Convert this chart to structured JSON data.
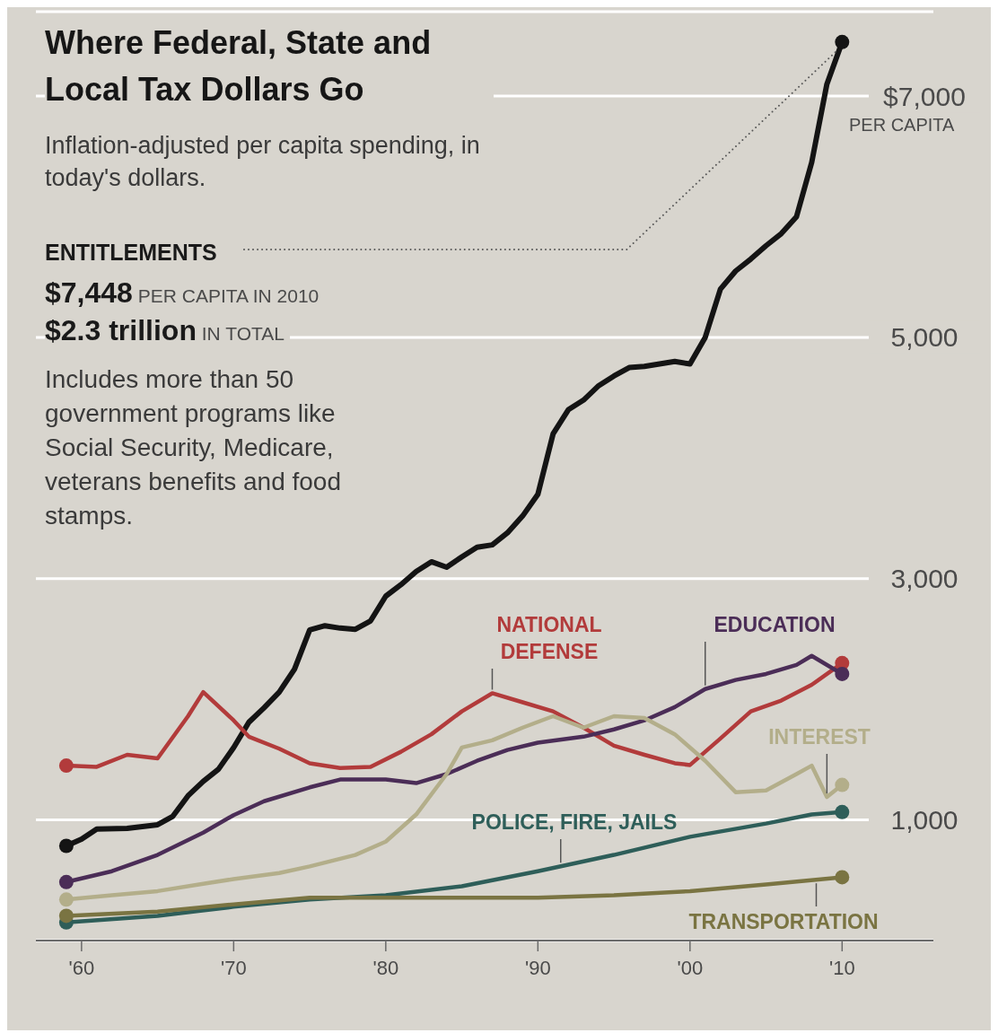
{
  "chart_data": {
    "type": "line",
    "title": "Where Federal, State and Local Tax Dollars Go",
    "subtitle": "Inflation-adjusted per capita spending, in today's dollars.",
    "annotations": [
      "$7,448 PER CAPITA IN 2010",
      "$2.3 trillion IN TOTAL",
      "Includes more than 50 government programs like Social Security, Medicare, veterans benefits and food stamps.",
      "PER CAPITA"
    ],
    "xlim": [
      1957,
      2016
    ],
    "xticks": [
      {
        "value": 1960,
        "label": "'60"
      },
      {
        "value": 1970,
        "label": "'70"
      },
      {
        "value": 1980,
        "label": "'80"
      },
      {
        "value": 1990,
        "label": "'90"
      },
      {
        "value": 2000,
        "label": "'00"
      },
      {
        "value": 2010,
        "label": "'10"
      }
    ],
    "ylim": [
      0,
      7700
    ],
    "yticks": [
      {
        "value": 1000,
        "label": "1,000"
      },
      {
        "value": 3000,
        "label": "3,000"
      },
      {
        "value": 5000,
        "label": "5,000"
      },
      {
        "value": 7000,
        "label": "$7,000"
      }
    ],
    "grid": "y",
    "series": [
      {
        "name": "ENTITLEMENTS",
        "color": "#141414",
        "x": [
          1959,
          1960,
          1961,
          1963,
          1965,
          1966,
          1967,
          1968,
          1969,
          1970,
          1971,
          1972,
          1973,
          1974,
          1975,
          1976,
          1977,
          1978,
          1979,
          1980,
          1981,
          1982,
          1983,
          1984,
          1985,
          1986,
          1987,
          1988,
          1989,
          1990,
          1991,
          1992,
          1993,
          1994,
          1995,
          1996,
          1997,
          1998,
          1999,
          2000,
          2001,
          2002,
          2003,
          2004,
          2005,
          2006,
          2007,
          2008,
          2009,
          2010
        ],
        "values": [
          785,
          840,
          925,
          930,
          960,
          1030,
          1200,
          1320,
          1420,
          1600,
          1810,
          1930,
          2060,
          2250,
          2575,
          2610,
          2590,
          2580,
          2650,
          2855,
          2950,
          3060,
          3140,
          3095,
          3180,
          3260,
          3280,
          3380,
          3520,
          3700,
          4200,
          4400,
          4480,
          4600,
          4680,
          4750,
          4760,
          4780,
          4800,
          4780,
          5000,
          5400,
          5550,
          5650,
          5760,
          5860,
          6000,
          6450,
          7100,
          7448
        ]
      },
      {
        "name": "NATIONAL DEFENSE",
        "color": "#b23b3b",
        "x": [
          1959,
          1961,
          1963,
          1965,
          1967,
          1968,
          1970,
          1971,
          1973,
          1975,
          1977,
          1979,
          1981,
          1983,
          1985,
          1987,
          1989,
          1991,
          1993,
          1995,
          1997,
          1999,
          2000,
          2002,
          2004,
          2006,
          2008,
          2010
        ],
        "values": [
          1450,
          1440,
          1540,
          1510,
          1860,
          2060,
          1825,
          1690,
          1590,
          1470,
          1430,
          1440,
          1565,
          1710,
          1900,
          2050,
          1975,
          1900,
          1765,
          1615,
          1540,
          1470,
          1455,
          1675,
          1900,
          1990,
          2120,
          2300
        ]
      },
      {
        "name": "EDUCATION",
        "color": "#4b2d57",
        "x": [
          1959,
          1962,
          1965,
          1968,
          1970,
          1972,
          1975,
          1977,
          1980,
          1982,
          1984,
          1986,
          1988,
          1990,
          1993,
          1995,
          1997,
          1999,
          2001,
          2003,
          2005,
          2007,
          2008,
          2010
        ],
        "values": [
          485,
          575,
          710,
          895,
          1040,
          1155,
          1270,
          1335,
          1335,
          1305,
          1380,
          1490,
          1580,
          1640,
          1690,
          1750,
          1825,
          1935,
          2085,
          2160,
          2210,
          2285,
          2360,
          2210
        ]
      },
      {
        "name": "INTEREST",
        "color": "#b3ae8a",
        "x": [
          1959,
          1962,
          1965,
          1968,
          1970,
          1973,
          1975,
          1978,
          1980,
          1982,
          1984,
          1985,
          1987,
          1989,
          1991,
          1993,
          1995,
          1997,
          1999,
          2001,
          2003,
          2005,
          2007,
          2008,
          2009,
          2010
        ],
        "values": [
          340,
          375,
          410,
          470,
          510,
          560,
          615,
          710,
          820,
          1045,
          1380,
          1600,
          1660,
          1765,
          1860,
          1765,
          1860,
          1845,
          1710,
          1490,
          1230,
          1245,
          1380,
          1450,
          1190,
          1290
        ]
      },
      {
        "name": "POLICE, FIRE, JAILS",
        "color": "#2e5e59",
        "x": [
          1959,
          1965,
          1970,
          1975,
          1980,
          1985,
          1990,
          1995,
          2000,
          2005,
          2008,
          2010
        ],
        "values": [
          150,
          205,
          280,
          340,
          375,
          450,
          575,
          710,
          860,
          970,
          1045,
          1065
        ]
      },
      {
        "name": "TRANSPORTATION",
        "color": "#7a7442",
        "x": [
          1959,
          1965,
          1970,
          1975,
          1980,
          1985,
          1990,
          1995,
          2000,
          2005,
          2010
        ],
        "values": [
          205,
          240,
          300,
          355,
          355,
          355,
          355,
          375,
          410,
          465,
          525
        ]
      }
    ]
  }
}
